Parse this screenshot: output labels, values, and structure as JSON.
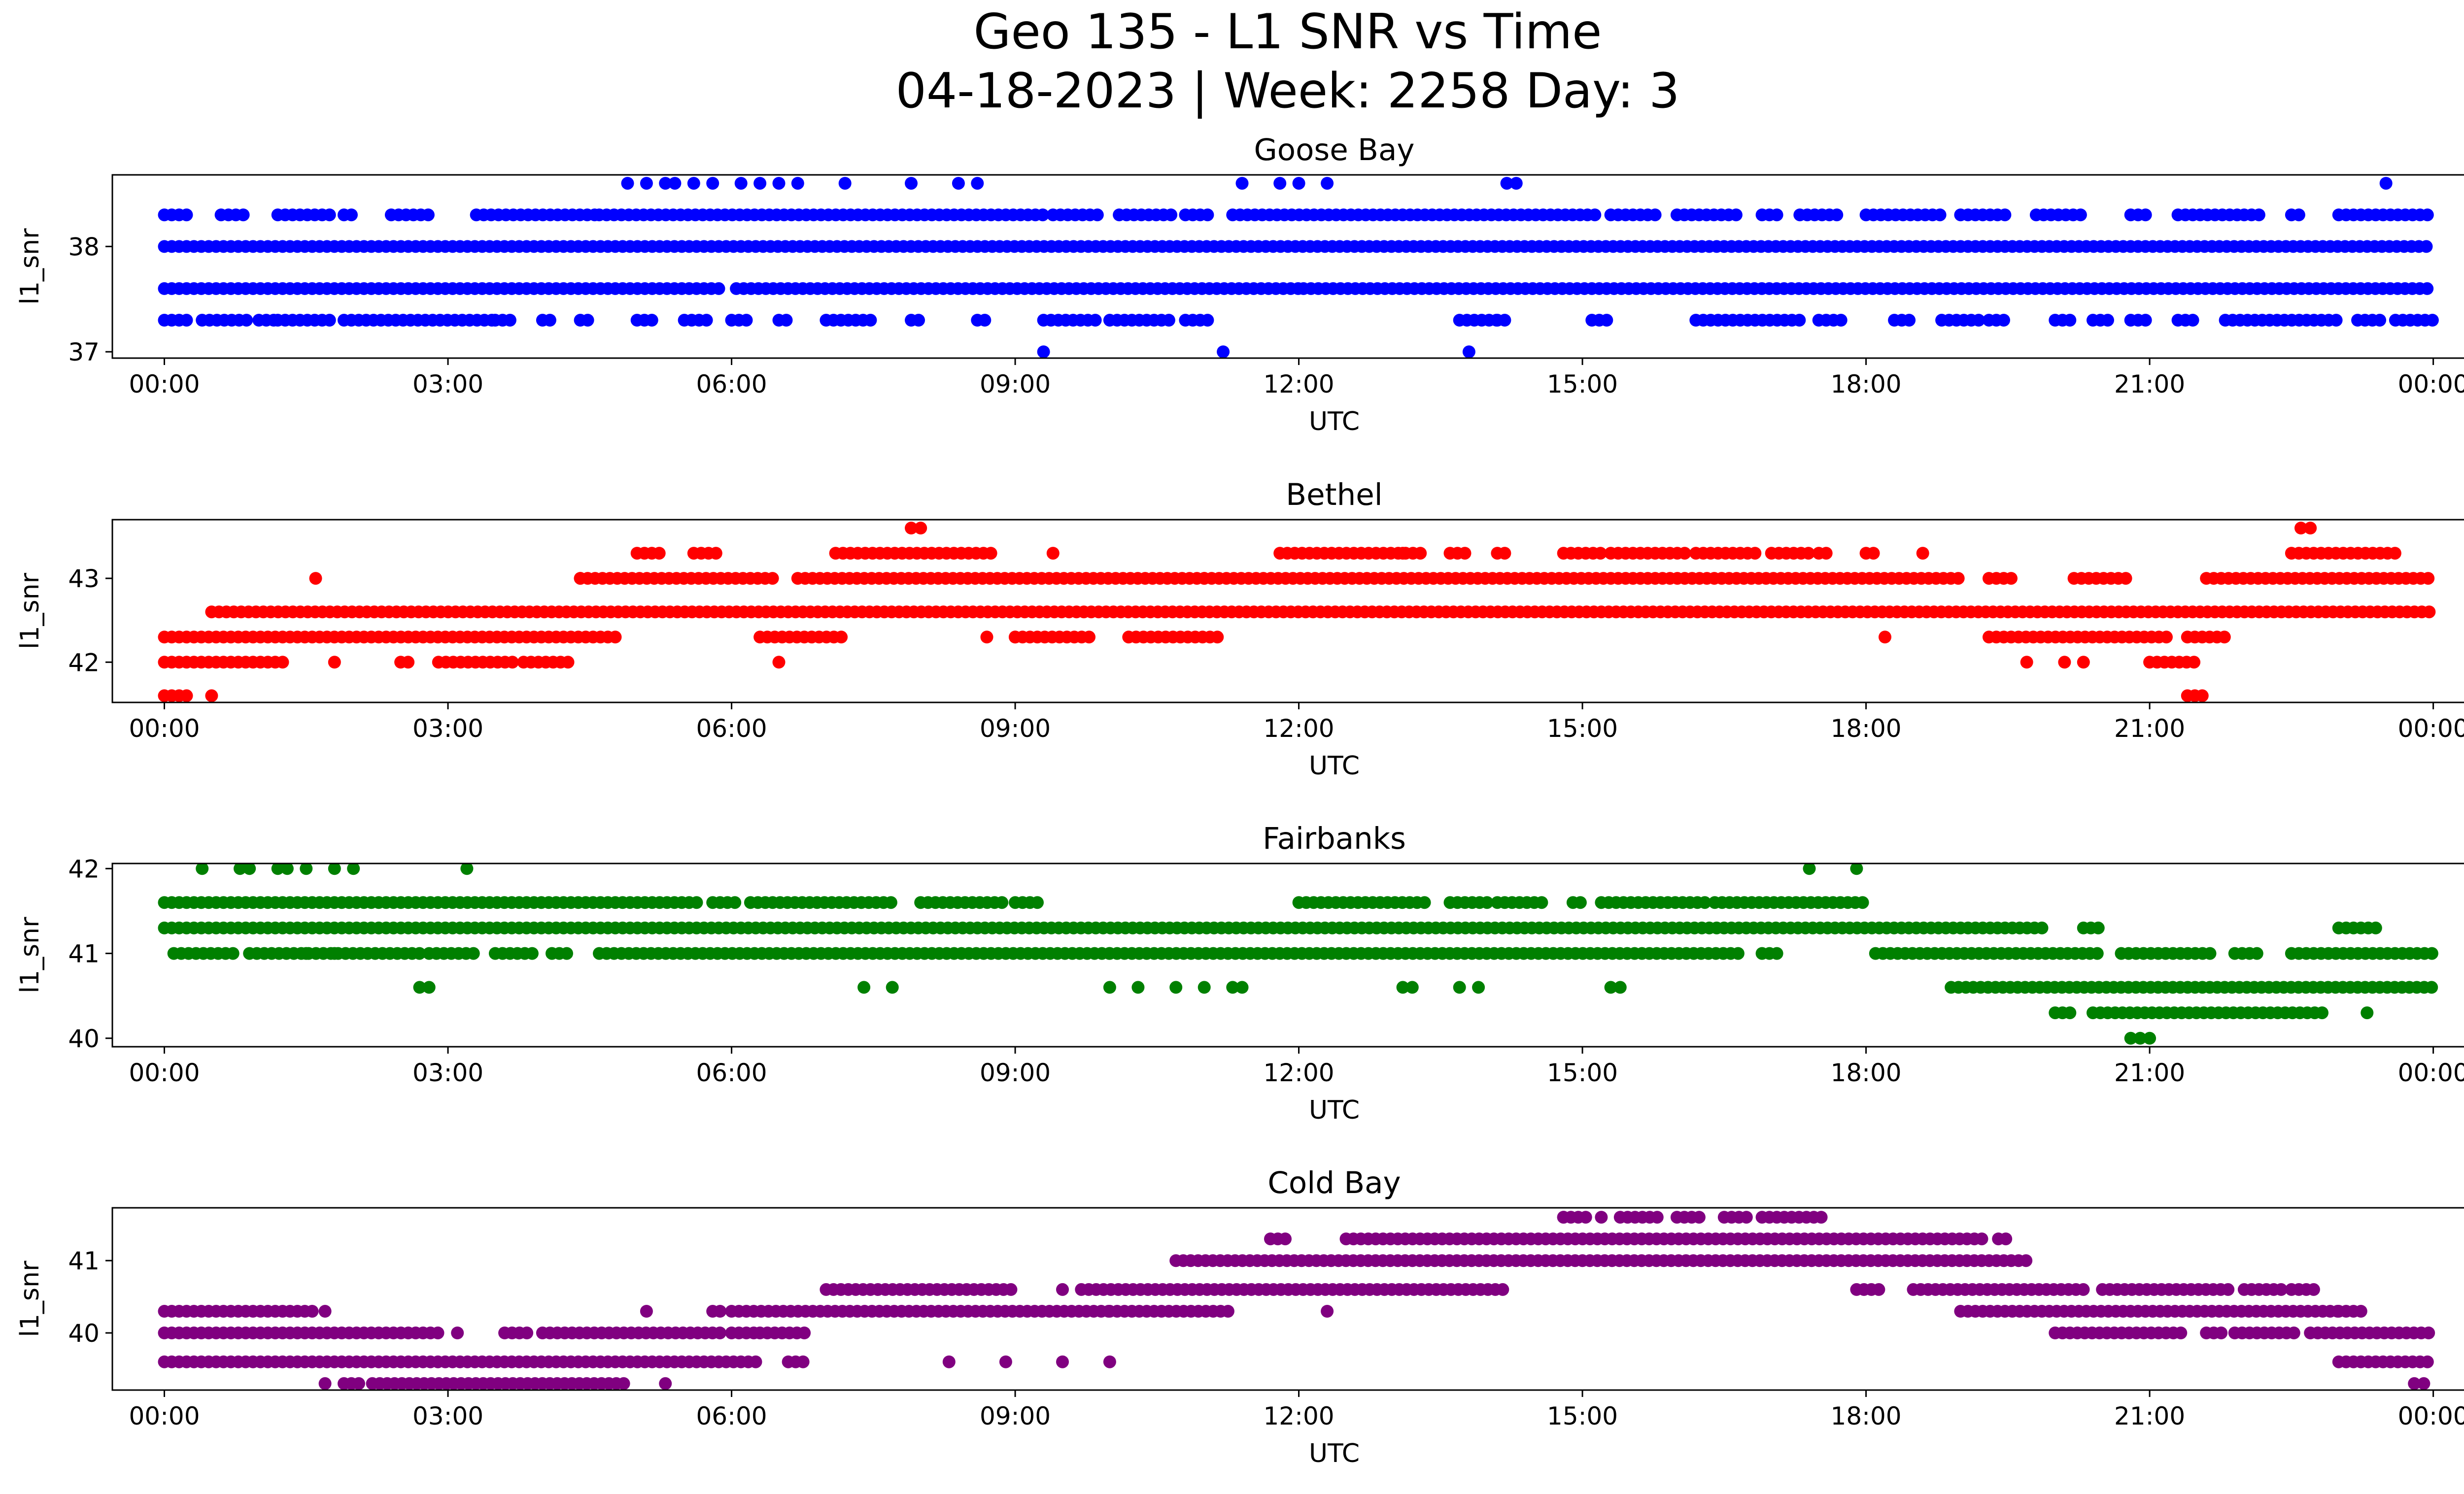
{
  "figure": {
    "title_line1": "Geo 135 - L1 SNR vs Time",
    "title_line2": "04-18-2023 | Week: 2258 Day: 3"
  },
  "chart_data": [
    {
      "type": "scatter",
      "title": "Goose Bay",
      "color": "#0000ff",
      "xlabel": "UTC",
      "ylabel": "l1_snr",
      "xlim": [
        -0.55,
        25.3
      ],
      "ylim": [
        36.94,
        38.68
      ],
      "x_ticks": [
        "00:00",
        "03:00",
        "06:00",
        "09:00",
        "12:00",
        "15:00",
        "18:00",
        "21:00",
        "00:00"
      ],
      "x_tick_values": [
        0,
        3,
        6,
        9,
        12,
        15,
        18,
        21,
        24
      ],
      "y_ticks": [
        37,
        38
      ],
      "levels": [
        {
          "y": 38.0,
          "segments": [
            [
              0.0,
              24.0
            ]
          ]
        },
        {
          "y": 37.6,
          "segments": [
            [
              0.0,
              5.9
            ],
            [
              6.05,
              12.0
            ],
            [
              12.05,
              24.0
            ]
          ]
        },
        {
          "y": 38.3,
          "segments": [
            [
              0.0,
              0.3
            ],
            [
              0.6,
              0.9
            ],
            [
              1.2,
              1.8
            ],
            [
              1.9,
              2.0
            ],
            [
              2.4,
              2.8
            ],
            [
              3.3,
              4.6
            ],
            [
              4.6,
              9.3
            ],
            [
              9.4,
              9.9
            ],
            [
              10.1,
              10.7
            ],
            [
              10.8,
              11.1
            ],
            [
              11.3,
              15.2
            ],
            [
              15.3,
              15.8
            ],
            [
              16.0,
              16.7
            ],
            [
              16.9,
              17.1
            ],
            [
              17.3,
              17.7
            ],
            [
              18.0,
              18.8
            ],
            [
              19.0,
              19.5
            ],
            [
              19.8,
              20.3
            ],
            [
              20.8,
              21.0
            ],
            [
              21.3,
              22.0
            ],
            [
              22.0,
              22.2
            ],
            [
              22.5,
              22.6
            ],
            [
              23.0,
              24.0
            ]
          ]
        },
        {
          "y": 37.3,
          "segments": [
            [
              0.0,
              0.3
            ],
            [
              0.4,
              0.9
            ],
            [
              1.0,
              1.2
            ],
            [
              1.2,
              1.8
            ],
            [
              1.9,
              3.5
            ],
            [
              3.5,
              3.7
            ],
            [
              4.0,
              4.1
            ],
            [
              4.4,
              4.5
            ],
            [
              5.0,
              5.2
            ],
            [
              5.5,
              5.8
            ],
            [
              6.0,
              6.2
            ],
            [
              6.5,
              6.6
            ],
            [
              7.0,
              7.5
            ],
            [
              7.9,
              8.0
            ],
            [
              8.6,
              8.7
            ],
            [
              9.3,
              9.9
            ],
            [
              10.0,
              10.7
            ],
            [
              10.8,
              11.1
            ],
            [
              13.7,
              14.1
            ],
            [
              14.1,
              14.2
            ],
            [
              15.1,
              15.3
            ],
            [
              16.2,
              17.3
            ],
            [
              17.5,
              17.8
            ],
            [
              18.3,
              18.5
            ],
            [
              18.8,
              19.2
            ],
            [
              19.3,
              19.5
            ],
            [
              20.0,
              20.2
            ],
            [
              20.4,
              20.6
            ],
            [
              20.8,
              21.0
            ],
            [
              21.3,
              21.5
            ],
            [
              21.8,
              23.0
            ],
            [
              23.2,
              23.5
            ],
            [
              23.6,
              24.0
            ]
          ]
        }
      ],
      "points": [
        [
          4.9,
          38.6
        ],
        [
          5.1,
          38.6
        ],
        [
          5.3,
          38.6
        ],
        [
          5.4,
          38.6
        ],
        [
          5.6,
          38.6
        ],
        [
          5.8,
          38.6
        ],
        [
          6.1,
          38.6
        ],
        [
          6.3,
          38.6
        ],
        [
          6.5,
          38.6
        ],
        [
          6.7,
          38.6
        ],
        [
          7.2,
          38.6
        ],
        [
          7.9,
          38.6
        ],
        [
          8.4,
          38.6
        ],
        [
          8.6,
          38.6
        ],
        [
          11.4,
          38.6
        ],
        [
          11.8,
          38.6
        ],
        [
          12.0,
          38.6
        ],
        [
          12.3,
          38.6
        ],
        [
          14.2,
          38.6
        ],
        [
          14.3,
          38.6
        ],
        [
          23.5,
          38.6
        ],
        [
          9.3,
          37.0
        ],
        [
          11.2,
          37.0
        ],
        [
          13.8,
          37.0
        ]
      ]
    },
    {
      "type": "scatter",
      "title": "Bethel",
      "color": "#ff0000",
      "xlabel": "UTC",
      "ylabel": "l1_snr",
      "xlim": [
        -0.55,
        25.3
      ],
      "ylim": [
        41.52,
        43.7
      ],
      "x_ticks": [
        "00:00",
        "03:00",
        "06:00",
        "09:00",
        "12:00",
        "15:00",
        "18:00",
        "21:00",
        "00:00"
      ],
      "x_tick_values": [
        0,
        3,
        6,
        9,
        12,
        15,
        18,
        21,
        24
      ],
      "y_ticks": [
        42,
        43
      ],
      "levels": [
        {
          "y": 42.6,
          "segments": [
            [
              0.5,
              24.0
            ]
          ]
        },
        {
          "y": 43.0,
          "segments": [
            [
              4.4,
              6.5
            ],
            [
              6.7,
              11.0
            ],
            [
              11.0,
              19.0
            ],
            [
              19.3,
              19.6
            ],
            [
              20.2,
              20.8
            ],
            [
              21.6,
              24.0
            ]
          ]
        },
        {
          "y": 42.3,
          "segments": [
            [
              0.0,
              4.8
            ],
            [
              6.3,
              7.2
            ],
            [
              9.0,
              9.8
            ],
            [
              10.2,
              11.2
            ],
            [
              19.3,
              21.2
            ],
            [
              21.4,
              21.8
            ]
          ]
        },
        {
          "y": 42.0,
          "segments": [
            [
              0.0,
              1.3
            ],
            [
              2.5,
              2.6
            ],
            [
              2.9,
              3.7
            ],
            [
              3.8,
              4.3
            ],
            [
              21.0,
              21.5
            ]
          ]
        },
        {
          "y": 43.3,
          "segments": [
            [
              5.0,
              5.3
            ],
            [
              5.6,
              5.9
            ],
            [
              7.1,
              8.8
            ],
            [
              11.8,
              13.3
            ],
            [
              13.6,
              13.8
            ],
            [
              14.1,
              14.2
            ],
            [
              14.8,
              15.2
            ],
            [
              15.3,
              16.1
            ],
            [
              16.2,
              16.9
            ],
            [
              17.0,
              17.4
            ],
            [
              17.5,
              17.6
            ],
            [
              18.0,
              18.1
            ],
            [
              22.5,
              23.6
            ]
          ]
        },
        {
          "y": 41.6,
          "segments": [
            [
              0.0,
              0.3
            ],
            [
              21.4,
              21.6
            ]
          ]
        }
      ],
      "points": [
        [
          1.6,
          43.0
        ],
        [
          4.4,
          43.0
        ],
        [
          9.4,
          43.3
        ],
        [
          13.1,
          43.3
        ],
        [
          18.6,
          43.3
        ],
        [
          7.9,
          43.6
        ],
        [
          8.0,
          43.6
        ],
        [
          22.6,
          43.6
        ],
        [
          22.7,
          43.6
        ],
        [
          1.8,
          42.0
        ],
        [
          6.5,
          42.0
        ],
        [
          19.7,
          42.0
        ],
        [
          20.1,
          42.0
        ],
        [
          20.3,
          42.0
        ],
        [
          8.7,
          42.3
        ],
        [
          9.0,
          42.3
        ],
        [
          18.2,
          42.3
        ],
        [
          0.5,
          41.6
        ]
      ]
    },
    {
      "type": "scatter",
      "title": "Fairbanks",
      "color": "#008000",
      "xlabel": "UTC",
      "ylabel": "l1_snr",
      "xlim": [
        -0.55,
        25.3
      ],
      "ylim": [
        39.9,
        42.06
      ],
      "x_ticks": [
        "00:00",
        "03:00",
        "06:00",
        "09:00",
        "12:00",
        "15:00",
        "18:00",
        "21:00",
        "00:00"
      ],
      "x_tick_values": [
        0,
        3,
        6,
        9,
        12,
        15,
        18,
        21,
        24
      ],
      "y_ticks": [
        40,
        41,
        42
      ],
      "levels": [
        {
          "y": 41.3,
          "segments": [
            [
              0.0,
              19.9
            ],
            [
              20.3,
              20.5
            ],
            [
              23.0,
              23.4
            ]
          ]
        },
        {
          "y": 41.6,
          "segments": [
            [
              0.0,
              5.7
            ],
            [
              5.8,
              6.1
            ],
            [
              6.2,
              7.7
            ],
            [
              8.0,
              8.9
            ],
            [
              9.0,
              9.3
            ],
            [
              12.0,
              13.4
            ],
            [
              13.6,
              14.0
            ],
            [
              14.1,
              14.6
            ],
            [
              14.9,
              15.0
            ],
            [
              15.2,
              16.3
            ],
            [
              16.4,
              18.0
            ]
          ]
        },
        {
          "y": 41.0,
          "segments": [
            [
              0.1,
              0.8
            ],
            [
              0.9,
              2.7
            ],
            [
              2.8,
              3.3
            ],
            [
              3.5,
              3.9
            ],
            [
              4.1,
              4.3
            ],
            [
              4.6,
              10.0
            ],
            [
              10.0,
              16.7
            ],
            [
              16.9,
              17.1
            ],
            [
              18.1,
              20.5
            ],
            [
              20.7,
              21.7
            ],
            [
              21.9,
              22.2
            ],
            [
              22.5,
              24.0
            ]
          ]
        },
        {
          "y": 40.6,
          "segments": [
            [
              18.9,
              24.0
            ]
          ]
        },
        {
          "y": 40.3,
          "segments": [
            [
              20.0,
              20.2
            ],
            [
              20.4,
              22.9
            ]
          ]
        }
      ],
      "points": [
        [
          0.4,
          42.0
        ],
        [
          0.8,
          42.0
        ],
        [
          0.9,
          42.0
        ],
        [
          1.2,
          42.0
        ],
        [
          1.3,
          42.0
        ],
        [
          1.5,
          42.0
        ],
        [
          1.8,
          42.0
        ],
        [
          2.0,
          42.0
        ],
        [
          3.2,
          42.0
        ],
        [
          17.4,
          42.0
        ],
        [
          17.9,
          42.0
        ],
        [
          1.5,
          41.0
        ],
        [
          1.8,
          41.0
        ],
        [
          2.7,
          40.6
        ],
        [
          2.8,
          40.6
        ],
        [
          7.4,
          40.6
        ],
        [
          7.7,
          40.6
        ],
        [
          10.0,
          40.6
        ],
        [
          10.3,
          40.6
        ],
        [
          10.7,
          40.6
        ],
        [
          11.0,
          40.6
        ],
        [
          11.3,
          40.6
        ],
        [
          11.4,
          40.6
        ],
        [
          13.1,
          40.6
        ],
        [
          13.2,
          40.6
        ],
        [
          13.7,
          40.6
        ],
        [
          13.9,
          40.6
        ],
        [
          15.3,
          40.6
        ],
        [
          15.4,
          40.6
        ],
        [
          23.3,
          40.3
        ],
        [
          20.8,
          40.0
        ],
        [
          20.9,
          40.0
        ],
        [
          21.0,
          40.0
        ]
      ]
    },
    {
      "type": "scatter",
      "title": "Cold Bay",
      "color": "#800080",
      "xlabel": "UTC",
      "ylabel": "l1_snr",
      "xlim": [
        -0.55,
        25.3
      ],
      "ylim": [
        39.21,
        41.73
      ],
      "x_ticks": [
        "00:00",
        "03:00",
        "06:00",
        "09:00",
        "12:00",
        "15:00",
        "18:00",
        "21:00",
        "00:00"
      ],
      "x_tick_values": [
        0,
        3,
        6,
        9,
        12,
        15,
        18,
        21,
        24
      ],
      "y_ticks": [
        40,
        41
      ],
      "levels": [
        {
          "y": 40.3,
          "segments": [
            [
              0.0,
              1.6
            ],
            [
              5.8,
              5.9
            ],
            [
              6.0,
              10.0
            ],
            [
              10.0,
              11.3
            ],
            [
              19.0,
              23.0
            ],
            [
              23.0,
              23.3
            ]
          ]
        },
        {
          "y": 40.0,
          "segments": [
            [
              0.0,
              2.9
            ],
            [
              3.6,
              3.9
            ],
            [
              4.0,
              5.9
            ],
            [
              6.0,
              6.3
            ],
            [
              6.3,
              6.8
            ],
            [
              20.0,
              21.4
            ],
            [
              21.6,
              21.8
            ],
            [
              21.9,
              22.6
            ],
            [
              22.7,
              24.0
            ]
          ]
        },
        {
          "y": 39.6,
          "segments": [
            [
              0.0,
              6.3
            ],
            [
              6.6,
              6.8
            ],
            [
              23.0,
              24.0
            ]
          ]
        },
        {
          "y": 39.3,
          "segments": [
            [
              1.9,
              2.1
            ],
            [
              2.2,
              4.9
            ]
          ]
        },
        {
          "y": 40.6,
          "segments": [
            [
              7.0,
              9.0
            ],
            [
              9.7,
              14.2
            ],
            [
              17.9,
              18.2
            ],
            [
              18.5,
              20.3
            ],
            [
              20.5,
              21.9
            ],
            [
              22.0,
              22.4
            ],
            [
              22.5,
              22.8
            ]
          ]
        },
        {
          "y": 41.0,
          "segments": [
            [
              10.7,
              19.7
            ]
          ]
        },
        {
          "y": 41.3,
          "segments": [
            [
              11.7,
              11.9
            ],
            [
              12.5,
              19.3
            ],
            [
              19.4,
              19.5
            ]
          ]
        },
        {
          "y": 41.6,
          "segments": [
            [
              14.8,
              15.1
            ],
            [
              15.4,
              15.8
            ],
            [
              16.0,
              16.3
            ],
            [
              16.5,
              16.8
            ],
            [
              16.9,
              17.6
            ]
          ]
        }
      ],
      "points": [
        [
          1.7,
          40.3
        ],
        [
          5.1,
          40.3
        ],
        [
          12.3,
          40.3
        ],
        [
          3.1,
          40.0
        ],
        [
          8.3,
          39.6
        ],
        [
          8.9,
          39.6
        ],
        [
          9.5,
          39.6
        ],
        [
          10.0,
          39.6
        ],
        [
          1.7,
          39.3
        ],
        [
          5.3,
          39.3
        ],
        [
          23.8,
          39.3
        ],
        [
          23.9,
          39.3
        ],
        [
          9.5,
          40.6
        ],
        [
          14.8,
          41.6
        ],
        [
          15.2,
          41.6
        ]
      ]
    }
  ]
}
